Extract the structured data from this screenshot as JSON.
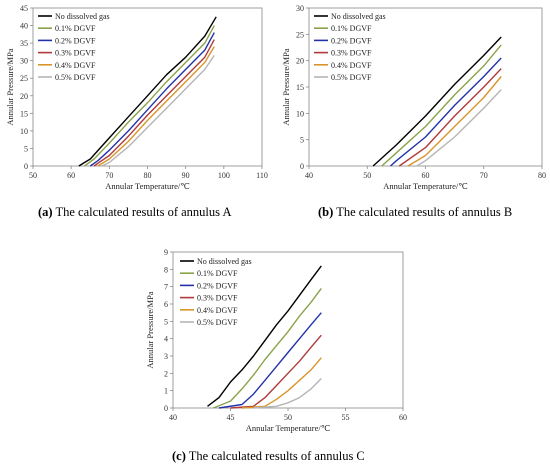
{
  "charts": [
    {
      "id": "a",
      "type": "line",
      "caption_label": "(a)",
      "caption_text": "The calculated results of annulus A",
      "xlabel": "Annular Temperature/℃",
      "ylabel": "Annular Pressure/MPa",
      "xlim": [
        50,
        110
      ],
      "ylim": [
        0,
        45
      ],
      "xticks": [
        50,
        60,
        70,
        80,
        90,
        100,
        110
      ],
      "yticks": [
        0,
        5,
        10,
        15,
        20,
        25,
        30,
        35,
        40,
        45
      ],
      "legend_position": "top-left",
      "series": [
        {
          "name": "No dissolved gas",
          "color": "#000000",
          "points": [
            [
              62,
              0
            ],
            [
              65,
              2
            ],
            [
              70,
              8
            ],
            [
              75,
              14
            ],
            [
              80,
              20
            ],
            [
              85,
              26
            ],
            [
              90,
              31
            ],
            [
              95,
              37
            ],
            [
              98,
              42.5
            ]
          ]
        },
        {
          "name": "0.1% DGVF",
          "color": "#8aa34a",
          "points": [
            [
              63.5,
              0
            ],
            [
              66,
              2
            ],
            [
              70,
              6.5
            ],
            [
              75,
              12.5
            ],
            [
              80,
              18
            ],
            [
              85,
              24
            ],
            [
              90,
              29.5
            ],
            [
              95,
              35
            ],
            [
              97.5,
              40
            ]
          ]
        },
        {
          "name": "0.2% DGVF",
          "color": "#2233aa",
          "points": [
            [
              65,
              0
            ],
            [
              67,
              1.5
            ],
            [
              70,
              4.5
            ],
            [
              75,
              10
            ],
            [
              80,
              16
            ],
            [
              85,
              22
            ],
            [
              90,
              27.5
            ],
            [
              95,
              33
            ],
            [
              97.5,
              38
            ]
          ]
        },
        {
          "name": "0.3% DGVF",
          "color": "#b03a3a",
          "points": [
            [
              66,
              0
            ],
            [
              68,
              1.5
            ],
            [
              70,
              3
            ],
            [
              75,
              8.5
            ],
            [
              80,
              14.5
            ],
            [
              85,
              20
            ],
            [
              90,
              25.5
            ],
            [
              95,
              31
            ],
            [
              97.5,
              36
            ]
          ]
        },
        {
          "name": "0.4% DGVF",
          "color": "#d9952b",
          "points": [
            [
              67,
              0
            ],
            [
              70,
              2
            ],
            [
              75,
              7
            ],
            [
              80,
              13
            ],
            [
              85,
              18.5
            ],
            [
              90,
              24
            ],
            [
              95,
              29.5
            ],
            [
              97.5,
              34
            ]
          ]
        },
        {
          "name": "0.5% DGVF",
          "color": "#b5b5b5",
          "points": [
            [
              68,
              0
            ],
            [
              70,
              1
            ],
            [
              75,
              5.5
            ],
            [
              80,
              11
            ],
            [
              85,
              16.5
            ],
            [
              90,
              22
            ],
            [
              95,
              27.5
            ],
            [
              97.5,
              31.5
            ]
          ]
        }
      ]
    },
    {
      "id": "b",
      "type": "line",
      "caption_label": "(b)",
      "caption_text": "The calculated results of annulus B",
      "xlabel": "Annular Temperature/℃",
      "ylabel": "Annular Pressure/MPa",
      "xlim": [
        40,
        80
      ],
      "ylim": [
        0,
        30
      ],
      "xticks": [
        40,
        50,
        60,
        70,
        80
      ],
      "yticks": [
        0,
        5,
        10,
        15,
        20,
        25,
        30
      ],
      "legend_position": "top-left",
      "series": [
        {
          "name": "No dissolved gas",
          "color": "#000000",
          "points": [
            [
              51,
              0
            ],
            [
              55,
              4
            ],
            [
              60,
              9.5
            ],
            [
              65,
              15.5
            ],
            [
              70,
              21
            ],
            [
              73,
              24.5
            ]
          ]
        },
        {
          "name": "0.1% DGVF",
          "color": "#8aa34a",
          "points": [
            [
              52.5,
              0
            ],
            [
              55,
              2.5
            ],
            [
              60,
              7.5
            ],
            [
              65,
              13.5
            ],
            [
              70,
              19
            ],
            [
              73,
              23
            ]
          ]
        },
        {
          "name": "0.2% DGVF",
          "color": "#2233aa",
          "points": [
            [
              54,
              0
            ],
            [
              55,
              1
            ],
            [
              60,
              5.5
            ],
            [
              65,
              11.5
            ],
            [
              70,
              17
            ],
            [
              73,
              20.5
            ]
          ]
        },
        {
          "name": "0.3% DGVF",
          "color": "#b03a3a",
          "points": [
            [
              55.5,
              0
            ],
            [
              60,
              3.5
            ],
            [
              65,
              9.5
            ],
            [
              70,
              15
            ],
            [
              73,
              18.5
            ]
          ]
        },
        {
          "name": "0.4% DGVF",
          "color": "#d9952b",
          "points": [
            [
              57,
              0
            ],
            [
              60,
              2
            ],
            [
              65,
              7.5
            ],
            [
              70,
              13
            ],
            [
              73,
              17
            ]
          ]
        },
        {
          "name": "0.5% DGVF",
          "color": "#b5b5b5",
          "points": [
            [
              58.5,
              0
            ],
            [
              60,
              1
            ],
            [
              65,
              5.5
            ],
            [
              70,
              11
            ],
            [
              73,
              14.5
            ]
          ]
        }
      ]
    },
    {
      "id": "c",
      "type": "line",
      "caption_label": "(c)",
      "caption_text": "The calculated results of annulus C",
      "xlabel": "Annular Temperature/℃",
      "ylabel": "Annular Pressure/MPa",
      "xlim": [
        40,
        60
      ],
      "ylim": [
        0,
        9
      ],
      "xticks": [
        40,
        45,
        50,
        55,
        60
      ],
      "yticks": [
        0,
        1,
        2,
        3,
        4,
        5,
        6,
        7,
        8,
        9
      ],
      "legend_position": "top-left",
      "series": [
        {
          "name": "No dissolved gas",
          "color": "#000000",
          "points": [
            [
              43,
              0.1
            ],
            [
              44,
              0.6
            ],
            [
              45,
              1.5
            ],
            [
              46,
              2.2
            ],
            [
              47,
              3
            ],
            [
              48,
              3.9
            ],
            [
              49,
              4.8
            ],
            [
              50,
              5.6
            ],
            [
              51,
              6.5
            ],
            [
              52,
              7.4
            ],
            [
              52.9,
              8.2
            ]
          ]
        },
        {
          "name": "0.1% DGVF",
          "color": "#8aa34a",
          "points": [
            [
              43.5,
              0
            ],
            [
              45,
              0.4
            ],
            [
              46,
              1.1
            ],
            [
              47,
              1.9
            ],
            [
              48,
              2.8
            ],
            [
              49,
              3.6
            ],
            [
              50,
              4.4
            ],
            [
              51,
              5.3
            ],
            [
              52,
              6.1
            ],
            [
              52.9,
              6.9
            ]
          ]
        },
        {
          "name": "0.2% DGVF",
          "color": "#2233aa",
          "points": [
            [
              44,
              0
            ],
            [
              46,
              0.2
            ],
            [
              47,
              0.8
            ],
            [
              48,
              1.6
            ],
            [
              49,
              2.4
            ],
            [
              50,
              3.2
            ],
            [
              51,
              4
            ],
            [
              52,
              4.8
            ],
            [
              52.9,
              5.5
            ]
          ]
        },
        {
          "name": "0.3% DGVF",
          "color": "#b03a3a",
          "points": [
            [
              45,
              0
            ],
            [
              47,
              0.1
            ],
            [
              48,
              0.6
            ],
            [
              49,
              1.3
            ],
            [
              50,
              2
            ],
            [
              51,
              2.7
            ],
            [
              52,
              3.5
            ],
            [
              52.9,
              4.2
            ]
          ]
        },
        {
          "name": "0.4% DGVF",
          "color": "#d9952b",
          "points": [
            [
              46,
              0
            ],
            [
              48,
              0.1
            ],
            [
              49,
              0.5
            ],
            [
              50,
              1
            ],
            [
              51,
              1.6
            ],
            [
              52,
              2.2
            ],
            [
              52.9,
              2.9
            ]
          ]
        },
        {
          "name": "0.5% DGVF",
          "color": "#b5b5b5",
          "points": [
            [
              47,
              0
            ],
            [
              49,
              0.1
            ],
            [
              50,
              0.3
            ],
            [
              51,
              0.6
            ],
            [
              52,
              1.1
            ],
            [
              52.9,
              1.7
            ]
          ]
        }
      ]
    }
  ]
}
